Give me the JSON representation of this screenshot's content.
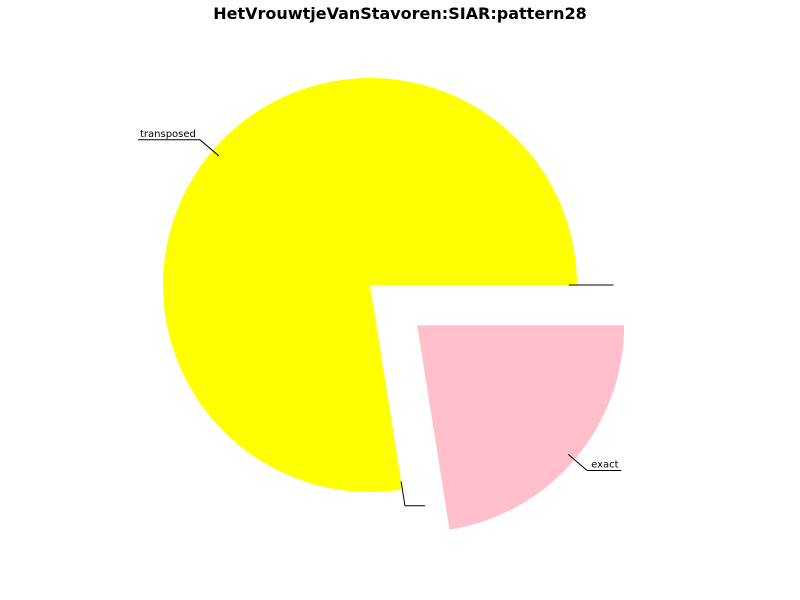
{
  "chart_data": {
    "type": "pie",
    "title": "HetVrouwtjeVanStavoren:SIAR:pattern28",
    "slices": [
      {
        "label": "",
        "value": 0.0,
        "color": "#ffffff"
      },
      {
        "label": "exact",
        "value": 22.5,
        "color": "#ffc0cb",
        "exploded": true
      },
      {
        "label": "",
        "value": 0.0,
        "color": "#ffffff"
      },
      {
        "label": "transposed",
        "value": 77.5,
        "color": "#ffff00"
      }
    ],
    "legend": "none"
  }
}
